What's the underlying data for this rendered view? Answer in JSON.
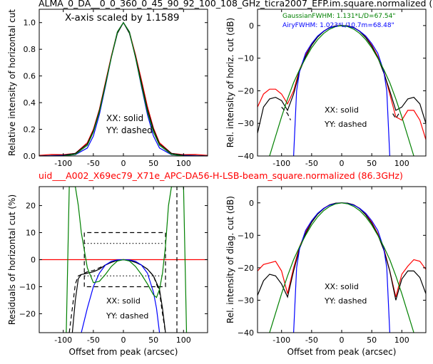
{
  "figure": {
    "title_top": "ALMA_0_DA__0_0_360_0_45_90_92_100_108_GHz_ticra2007_EFP.im.square.normalized (",
    "title_mid": "uid___A002_X69ec79_X71e_APC-DA56-H-LSB-beam_square.normalized (86.3GHz)",
    "colors": {
      "red": "#ff0000",
      "black": "#000000",
      "blue": "#0000ff",
      "green": "#008000"
    }
  },
  "chart_data": [
    {
      "id": "p1",
      "type": "line",
      "ylabel": "Relative intensity of horizontal cut",
      "xlabel": "",
      "xlim": [
        -140,
        140
      ],
      "ylim": [
        0,
        1.1
      ],
      "xticks": [
        -100,
        -50,
        0,
        50,
        100
      ],
      "yticks": [
        0.0,
        0.2,
        0.4,
        0.6,
        0.8,
        1.0
      ],
      "ytick_labels": [
        "0.0",
        "0.2",
        "0.4",
        "0.6",
        "0.8",
        "1.0"
      ],
      "annotations": [
        "X-axis scaled by 1.1589",
        "XX: solid",
        "YY: dashed"
      ],
      "series": [
        {
          "color": "red",
          "style": "solid",
          "x": [
            -140,
            -120,
            -100,
            -80,
            -60,
            -50,
            -40,
            -30,
            -20,
            -10,
            0,
            10,
            20,
            30,
            40,
            50,
            60,
            80,
            100,
            120,
            140
          ],
          "y": [
            0.005,
            0.012,
            0.01,
            0.02,
            0.1,
            0.2,
            0.35,
            0.55,
            0.75,
            0.93,
            1.0,
            0.93,
            0.76,
            0.57,
            0.37,
            0.21,
            0.1,
            0.02,
            0.01,
            0.012,
            0.005
          ]
        },
        {
          "color": "black",
          "style": "solid",
          "x": [
            -140,
            -120,
            -100,
            -80,
            -60,
            -50,
            -40,
            -30,
            -20,
            -10,
            0,
            10,
            20,
            30,
            40,
            50,
            60,
            80,
            100,
            120,
            140
          ],
          "y": [
            0.0,
            0.004,
            0.006,
            0.02,
            0.09,
            0.19,
            0.34,
            0.54,
            0.74,
            0.92,
            1.0,
            0.92,
            0.75,
            0.55,
            0.35,
            0.2,
            0.09,
            0.02,
            0.006,
            0.004,
            0.0
          ]
        },
        {
          "color": "blue",
          "style": "solid",
          "x": [
            -140,
            -120,
            -100,
            -80,
            -60,
            -50,
            -40,
            -30,
            -20,
            -10,
            0,
            10,
            20,
            30,
            40,
            50,
            60,
            80,
            100,
            120,
            140
          ],
          "y": [
            0.0,
            0.002,
            0.003,
            0.01,
            0.06,
            0.15,
            0.31,
            0.52,
            0.74,
            0.93,
            1.0,
            0.93,
            0.74,
            0.52,
            0.31,
            0.15,
            0.06,
            0.01,
            0.003,
            0.002,
            0.0
          ]
        },
        {
          "color": "green",
          "style": "solid",
          "x": [
            -140,
            -120,
            -100,
            -80,
            -60,
            -50,
            -40,
            -30,
            -20,
            -10,
            0,
            10,
            20,
            30,
            40,
            50,
            60,
            80,
            100,
            120,
            140
          ],
          "y": [
            0.0,
            0.0,
            0.001,
            0.012,
            0.08,
            0.18,
            0.33,
            0.53,
            0.74,
            0.93,
            1.0,
            0.93,
            0.74,
            0.53,
            0.33,
            0.18,
            0.08,
            0.012,
            0.001,
            0.0,
            0.0
          ]
        }
      ]
    },
    {
      "id": "p2",
      "type": "line",
      "ylabel": "Rel. intensity of horiz. cut (dB)",
      "xlabel": "",
      "xlim": [
        -140,
        140
      ],
      "ylim": [
        -40,
        5
      ],
      "xticks": [
        -100,
        -50,
        0,
        50,
        100
      ],
      "yticks": [
        -40,
        -30,
        -20,
        -10,
        0
      ],
      "ytick_labels": [
        "−40",
        "−30",
        "−20",
        "−10",
        "0"
      ],
      "annotations": [
        "GaussianFWHM: 1.131*L/D=67.54\"",
        "AiryFWHM: 1.023*L/10.7m=68.48\"",
        "XX: solid",
        "YY: dashed"
      ],
      "series": [
        {
          "color": "red",
          "style": "solid",
          "x": [
            -140,
            -130,
            -120,
            -110,
            -100,
            -90,
            -80,
            -70,
            -60,
            -50,
            -40,
            -30,
            -20,
            -10,
            0,
            10,
            20,
            30,
            40,
            50,
            60,
            70,
            80,
            90,
            100,
            110,
            120,
            130,
            140
          ],
          "y": [
            -25,
            -21,
            -19.5,
            -19.5,
            -21,
            -24,
            -20,
            -13.5,
            -9,
            -5.8,
            -3.4,
            -1.7,
            -0.6,
            -0.1,
            0,
            -0.1,
            -0.6,
            -1.7,
            -3.5,
            -6,
            -9.5,
            -14,
            -21,
            -28,
            -29,
            -26,
            -26,
            -29,
            -35
          ]
        },
        {
          "color": "black",
          "style": "solid",
          "x": [
            -140,
            -130,
            -120,
            -110,
            -100,
            -90,
            -80,
            -70,
            -60,
            -50,
            -40,
            -30,
            -20,
            -10,
            0,
            10,
            20,
            30,
            40,
            50,
            60,
            70,
            80,
            90,
            100,
            110,
            120,
            130,
            140
          ],
          "y": [
            -33,
            -25,
            -22.5,
            -22,
            -23,
            -26,
            -21,
            -14,
            -9.5,
            -6,
            -3.5,
            -1.8,
            -0.6,
            -0.1,
            0,
            -0.1,
            -0.6,
            -1.8,
            -3.7,
            -6.3,
            -9.8,
            -14.5,
            -20,
            -26,
            -25,
            -22.5,
            -22,
            -24,
            -30
          ]
        },
        {
          "color": "blue",
          "style": "solid",
          "x": [
            -80,
            -75,
            -70,
            -60,
            -50,
            -40,
            -30,
            -20,
            -10,
            0,
            10,
            20,
            30,
            40,
            50,
            60,
            70,
            75,
            80
          ],
          "y": [
            -40,
            -20,
            -14,
            -8.5,
            -5.5,
            -3.2,
            -1.7,
            -0.7,
            -0.2,
            0,
            -0.2,
            -0.7,
            -1.7,
            -3.2,
            -5.5,
            -8.5,
            -14,
            -20,
            -40
          ]
        },
        {
          "color": "green",
          "style": "solid",
          "x": [
            -120,
            -110,
            -100,
            -90,
            -80,
            -70,
            -60,
            -50,
            -40,
            -30,
            -20,
            -10,
            0,
            10,
            20,
            30,
            40,
            50,
            60,
            70,
            80,
            90,
            100,
            110,
            120
          ],
          "y": [
            -40,
            -34,
            -28,
            -22.5,
            -17.5,
            -13.5,
            -10,
            -6.8,
            -4.3,
            -2.4,
            -1.1,
            -0.3,
            0,
            -0.3,
            -1.1,
            -2.4,
            -4.3,
            -6.8,
            -10,
            -13.5,
            -17.5,
            -22.5,
            -28,
            -34,
            -40
          ]
        },
        {
          "color": "black",
          "style": "dashed",
          "x": [
            -100,
            -90,
            -85
          ],
          "y": [
            -25,
            -27,
            -29
          ]
        },
        {
          "color": "black",
          "style": "dashed",
          "x": [
            85,
            90,
            95
          ],
          "y": [
            -27,
            -28.5,
            -27
          ]
        }
      ]
    },
    {
      "id": "p3",
      "type": "line",
      "ylabel": "Residuals of horizontal cut (%)",
      "xlabel": "Offset from peak (arcsec)",
      "xlim": [
        -140,
        140
      ],
      "ylim": [
        -27,
        27
      ],
      "xticks": [
        -100,
        -50,
        0,
        50,
        100
      ],
      "yticks": [
        -20,
        -10,
        0,
        10,
        20
      ],
      "ytick_labels": [
        "−20",
        "−10",
        "0",
        "10",
        "20"
      ],
      "annotations": [
        "XX: solid",
        "YY: dashed"
      ],
      "series": [
        {
          "color": "red",
          "style": "solid",
          "x": [
            -140,
            140
          ],
          "y": [
            0,
            0
          ]
        },
        {
          "color": "black",
          "style": "solid",
          "x": [
            -85,
            -80,
            -75,
            -70,
            -60,
            -50,
            -40,
            -30,
            -20,
            -10,
            0,
            10,
            20,
            30,
            40,
            50,
            60,
            65,
            70
          ],
          "y": [
            -27,
            -15,
            -7,
            -5.5,
            -5,
            -4.5,
            -3.5,
            -2,
            -1,
            -0.3,
            0,
            -0.3,
            -1,
            -2,
            -3.5,
            -6,
            -11,
            -18,
            -27
          ]
        },
        {
          "color": "black",
          "style": "dashed",
          "x": [
            -90,
            -85,
            -80,
            -75,
            -70,
            -60,
            -50,
            -40,
            -30,
            -20,
            -10,
            0,
            10,
            20,
            30,
            40,
            50,
            60,
            65,
            70
          ],
          "y": [
            -27,
            -18,
            -9,
            -6,
            -5.5,
            -4.5,
            -4,
            -3,
            -2,
            -1,
            -0.3,
            0,
            -0.3,
            -1,
            -2,
            -3.5,
            -6,
            -12,
            -20,
            -27
          ]
        },
        {
          "color": "black",
          "style": "dashed",
          "x": [
            -65,
            -65,
            70,
            70,
            -65
          ],
          "y": [
            -10,
            10,
            10,
            -10,
            -10
          ]
        },
        {
          "color": "black",
          "style": "dotted",
          "x": [
            -65,
            65
          ],
          "y": [
            6,
            6
          ]
        },
        {
          "color": "black",
          "style": "dotted",
          "x": [
            -65,
            65
          ],
          "y": [
            -6,
            -6
          ]
        },
        {
          "color": "black",
          "style": "dashed",
          "x": [
            89,
            89
          ],
          "y": [
            -27,
            27
          ]
        },
        {
          "color": "blue",
          "style": "solid",
          "x": [
            -70,
            -60,
            -50,
            -40,
            -30,
            -20,
            -10,
            0,
            10,
            20,
            30,
            40,
            50,
            55,
            60
          ],
          "y": [
            -27,
            -18,
            -10,
            -5,
            -2,
            -0.6,
            -0.1,
            0,
            -0.1,
            -0.6,
            -2,
            -5,
            -12,
            -18,
            -27
          ]
        },
        {
          "color": "green",
          "style": "solid",
          "x": [
            -95,
            -90,
            -85,
            -80,
            -75,
            -70,
            -60,
            -50,
            -40,
            -30,
            -20,
            -10,
            0,
            10,
            20,
            30,
            40,
            50,
            55,
            60,
            65,
            70,
            75,
            80,
            85,
            90,
            95,
            100,
            105
          ],
          "y": [
            -27,
            27,
            27,
            27,
            20,
            10,
            -3,
            -8.5,
            -8,
            -5.5,
            -2.5,
            -0.5,
            0,
            -0.5,
            -2.5,
            -5.5,
            -9,
            -13,
            -14,
            -11,
            -5,
            5,
            20,
            27,
            27,
            27,
            27,
            27,
            -27
          ]
        }
      ]
    },
    {
      "id": "p4",
      "type": "line",
      "ylabel": "Rel. intensity of diag. cut (dB)",
      "xlabel": "Offset from peak (arcsec)",
      "xlim": [
        -140,
        140
      ],
      "ylim": [
        -40,
        5
      ],
      "xticks": [
        -100,
        -50,
        0,
        50,
        100
      ],
      "yticks": [
        -40,
        -30,
        -20,
        -10,
        0
      ],
      "ytick_labels": [
        "−40",
        "−30",
        "−20",
        "−10",
        "0"
      ],
      "annotations": [
        "XX: solid",
        "YY: dashed"
      ],
      "series": [
        {
          "color": "red",
          "style": "solid",
          "x": [
            -140,
            -130,
            -120,
            -110,
            -100,
            -90,
            -80,
            -70,
            -60,
            -50,
            -40,
            -30,
            -20,
            -10,
            0,
            10,
            20,
            30,
            40,
            50,
            60,
            70,
            80,
            90,
            100,
            110,
            120,
            130,
            140
          ],
          "y": [
            -21,
            -19,
            -18.5,
            -18,
            -21,
            -28,
            -20,
            -13.5,
            -9,
            -5.8,
            -3.4,
            -1.7,
            -0.6,
            -0.1,
            0,
            -0.1,
            -0.6,
            -1.7,
            -3.5,
            -6,
            -9.5,
            -14,
            -21,
            -29,
            -22,
            -19.5,
            -17.5,
            -18,
            -20.5
          ]
        },
        {
          "color": "black",
          "style": "solid",
          "x": [
            -140,
            -130,
            -120,
            -110,
            -100,
            -90,
            -80,
            -70,
            -60,
            -50,
            -40,
            -30,
            -20,
            -10,
            0,
            10,
            20,
            30,
            40,
            50,
            60,
            70,
            80,
            90,
            100,
            110,
            120,
            130,
            140
          ],
          "y": [
            -28.5,
            -24,
            -22,
            -22.5,
            -25,
            -29,
            -21,
            -14,
            -9.5,
            -6,
            -3.5,
            -1.8,
            -0.6,
            -0.1,
            0,
            -0.1,
            -0.6,
            -1.8,
            -3.7,
            -6.3,
            -9.8,
            -14.5,
            -21,
            -30,
            -23.5,
            -21,
            -21,
            -23,
            -28
          ]
        },
        {
          "color": "blue",
          "style": "solid",
          "x": [
            -80,
            -75,
            -70,
            -60,
            -50,
            -40,
            -30,
            -20,
            -10,
            0,
            10,
            20,
            30,
            40,
            50,
            60,
            70,
            75,
            80
          ],
          "y": [
            -40,
            -20,
            -14,
            -8.5,
            -5.5,
            -3.2,
            -1.7,
            -0.7,
            -0.2,
            0,
            -0.2,
            -0.7,
            -1.7,
            -3.2,
            -5.5,
            -8.5,
            -14,
            -20,
            -40
          ]
        },
        {
          "color": "green",
          "style": "solid",
          "x": [
            -120,
            -110,
            -100,
            -90,
            -80,
            -70,
            -60,
            -50,
            -40,
            -30,
            -20,
            -10,
            0,
            10,
            20,
            30,
            40,
            50,
            60,
            70,
            80,
            90,
            100,
            110,
            120
          ],
          "y": [
            -40,
            -34,
            -28,
            -22.5,
            -17.5,
            -13.5,
            -10,
            -6.8,
            -4.3,
            -2.4,
            -1.1,
            -0.3,
            0,
            -0.3,
            -1.1,
            -2.4,
            -4.3,
            -6.8,
            -10,
            -13.5,
            -17.5,
            -22.5,
            -28,
            -34,
            -40
          ]
        }
      ]
    }
  ]
}
